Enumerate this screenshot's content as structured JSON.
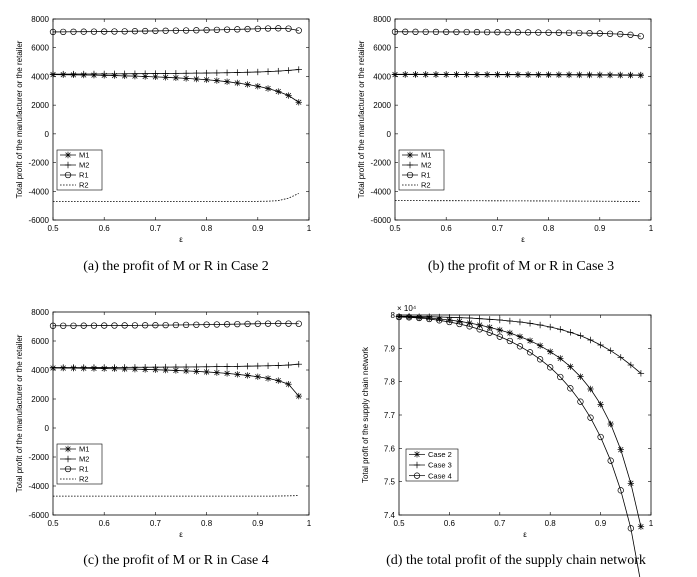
{
  "chart_data": [
    {
      "id": "a",
      "type": "line",
      "caption": "(a)  the profit of M or R in Case 2",
      "xlabel": "ε",
      "ylabel": "Total profit of the manufacturer or the retailer",
      "xlim": [
        0.5,
        1
      ],
      "ylim": [
        -6000,
        8000
      ],
      "xticks": [
        "0.5",
        "0.6",
        "0.7",
        "0.8",
        "0.9",
        "1"
      ],
      "yticks": [
        "-6000",
        "-4000",
        "-2000",
        "0",
        "2000",
        "4000",
        "6000",
        "8000"
      ],
      "exponent": "",
      "legend": [
        "M1",
        "M2",
        "R1",
        "R2"
      ],
      "x": [
        0.5,
        0.52,
        0.54,
        0.56,
        0.58,
        0.6,
        0.62,
        0.64,
        0.66,
        0.68,
        0.7,
        0.72,
        0.74,
        0.76,
        0.78,
        0.8,
        0.82,
        0.84,
        0.86,
        0.88,
        0.9,
        0.92,
        0.94,
        0.96,
        0.98
      ],
      "series": [
        {
          "name": "M1",
          "marker": "star",
          "values": [
            4130,
            4120,
            4110,
            4100,
            4090,
            4075,
            4060,
            4040,
            4020,
            3995,
            3970,
            3940,
            3905,
            3865,
            3820,
            3770,
            3710,
            3635,
            3545,
            3440,
            3315,
            3160,
            2950,
            2670,
            2200
          ]
        },
        {
          "name": "M2",
          "marker": "plus",
          "values": [
            4160,
            4162,
            4165,
            4168,
            4170,
            4175,
            4180,
            4185,
            4190,
            4195,
            4200,
            4206,
            4212,
            4220,
            4228,
            4236,
            4246,
            4258,
            4272,
            4290,
            4310,
            4335,
            4370,
            4420,
            4480
          ]
        },
        {
          "name": "R1",
          "marker": "circle",
          "values": [
            7100,
            7105,
            7110,
            7115,
            7120,
            7125,
            7130,
            7140,
            7150,
            7160,
            7170,
            7180,
            7190,
            7200,
            7215,
            7230,
            7245,
            7260,
            7280,
            7300,
            7320,
            7340,
            7350,
            7330,
            7200
          ]
        },
        {
          "name": "R2",
          "marker": "none",
          "dash": true,
          "values": [
            -4700,
            -4700,
            -4700,
            -4700,
            -4700,
            -4700,
            -4700,
            -4700,
            -4700,
            -4700,
            -4700,
            -4700,
            -4700,
            -4700,
            -4700,
            -4700,
            -4700,
            -4700,
            -4700,
            -4700,
            -4700,
            -4690,
            -4650,
            -4480,
            -4150
          ]
        }
      ]
    },
    {
      "id": "b",
      "type": "line",
      "caption": "(b)  the profit of M or R in Case 3",
      "xlabel": "ε",
      "ylabel": "Total profit of the manufacturer or the retailer",
      "xlim": [
        0.5,
        1
      ],
      "ylim": [
        -6000,
        8000
      ],
      "xticks": [
        "0.5",
        "0.6",
        "0.7",
        "0.8",
        "0.9",
        "1"
      ],
      "yticks": [
        "-6000",
        "-4000",
        "-2000",
        "0",
        "2000",
        "4000",
        "6000",
        "8000"
      ],
      "exponent": "",
      "legend": [
        "M1",
        "M2",
        "R1",
        "R2"
      ],
      "x": [
        0.5,
        0.52,
        0.54,
        0.56,
        0.58,
        0.6,
        0.62,
        0.64,
        0.66,
        0.68,
        0.7,
        0.72,
        0.74,
        0.76,
        0.78,
        0.8,
        0.82,
        0.84,
        0.86,
        0.88,
        0.9,
        0.92,
        0.94,
        0.96,
        0.98
      ],
      "series": [
        {
          "name": "M1",
          "marker": "star",
          "values": [
            4130,
            4129,
            4128,
            4127,
            4126,
            4125,
            4124,
            4123,
            4122,
            4121,
            4120,
            4118,
            4116,
            4114,
            4112,
            4110,
            4108,
            4106,
            4103,
            4100,
            4096,
            4092,
            4088,
            4083,
            4078
          ]
        },
        {
          "name": "M2",
          "marker": "plus",
          "values": [
            4150,
            4149,
            4148,
            4147,
            4146,
            4145,
            4144,
            4143,
            4142,
            4141,
            4140,
            4138,
            4136,
            4134,
            4132,
            4130,
            4128,
            4126,
            4123,
            4120,
            4116,
            4112,
            4108,
            4103,
            4098
          ]
        },
        {
          "name": "R1",
          "marker": "circle",
          "values": [
            7110,
            7108,
            7106,
            7104,
            7102,
            7100,
            7097,
            7094,
            7090,
            7086,
            7082,
            7077,
            7072,
            7066,
            7060,
            7053,
            7045,
            7036,
            7025,
            7012,
            6995,
            6975,
            6945,
            6900,
            6800
          ]
        },
        {
          "name": "R2",
          "marker": "none",
          "dash": true,
          "values": [
            -4650,
            -4651,
            -4652,
            -4653,
            -4654,
            -4655,
            -4656,
            -4658,
            -4660,
            -4662,
            -4664,
            -4666,
            -4668,
            -4670,
            -4672,
            -4674,
            -4677,
            -4680,
            -4683,
            -4687,
            -4691,
            -4695,
            -4700,
            -4706,
            -4712
          ]
        }
      ]
    },
    {
      "id": "c",
      "type": "line",
      "caption": "(c)  the profit of M or R in Case 4",
      "xlabel": "ε",
      "ylabel": "Total profit of the manufacturer or the retailer",
      "xlim": [
        0.5,
        1
      ],
      "ylim": [
        -6000,
        8000
      ],
      "xticks": [
        "0.5",
        "0.6",
        "0.7",
        "0.8",
        "0.9",
        "1"
      ],
      "yticks": [
        "-6000",
        "-4000",
        "-2000",
        "0",
        "2000",
        "4000",
        "6000",
        "8000"
      ],
      "exponent": "",
      "legend": [
        "M1",
        "M2",
        "R1",
        "R2"
      ],
      "x": [
        0.5,
        0.52,
        0.54,
        0.56,
        0.58,
        0.6,
        0.62,
        0.64,
        0.66,
        0.68,
        0.7,
        0.72,
        0.74,
        0.76,
        0.78,
        0.8,
        0.82,
        0.84,
        0.86,
        0.88,
        0.9,
        0.92,
        0.94,
        0.96,
        0.98
      ],
      "series": [
        {
          "name": "M1",
          "marker": "star",
          "values": [
            4140,
            4135,
            4128,
            4120,
            4110,
            4100,
            4088,
            4074,
            4058,
            4040,
            4020,
            3996,
            3970,
            3940,
            3905,
            3865,
            3818,
            3765,
            3700,
            3625,
            3535,
            3420,
            3270,
            3020,
            2200
          ]
        },
        {
          "name": "M2",
          "marker": "plus",
          "values": [
            4170,
            4171,
            4172,
            4174,
            4176,
            4178,
            4180,
            4183,
            4186,
            4190,
            4194,
            4198,
            4203,
            4209,
            4215,
            4222,
            4230,
            4240,
            4250,
            4262,
            4276,
            4292,
            4312,
            4340,
            4400
          ]
        },
        {
          "name": "R1",
          "marker": "circle",
          "values": [
            7050,
            7052,
            7054,
            7057,
            7060,
            7064,
            7068,
            7073,
            7078,
            7084,
            7090,
            7097,
            7104,
            7112,
            7120,
            7130,
            7140,
            7152,
            7165,
            7178,
            7190,
            7200,
            7205,
            7200,
            7190
          ]
        },
        {
          "name": "R2",
          "marker": "none",
          "dash": true,
          "values": [
            -4700,
            -4700,
            -4700,
            -4700,
            -4700,
            -4700,
            -4700,
            -4700,
            -4700,
            -4700,
            -4700,
            -4700,
            -4700,
            -4700,
            -4700,
            -4700,
            -4700,
            -4700,
            -4700,
            -4700,
            -4700,
            -4700,
            -4690,
            -4680,
            -4660
          ]
        }
      ]
    },
    {
      "id": "d",
      "type": "line",
      "caption": "(d)  the total profit of the supply chain network",
      "xlabel": "ε",
      "ylabel": "Total profit of the supply chain network",
      "xlim": [
        0.5,
        1
      ],
      "ylim": [
        7.4,
        8
      ],
      "xticks": [
        "0.5",
        "0.6",
        "0.7",
        "0.8",
        "0.9",
        "1"
      ],
      "yticks": [
        "7.4",
        "7.5",
        "7.6",
        "7.7",
        "7.8",
        "7.9",
        "8"
      ],
      "exponent": "× 10⁴",
      "legend": [
        "Case 2",
        "Case 3",
        "Case 4"
      ],
      "x": [
        0.5,
        0.52,
        0.54,
        0.56,
        0.58,
        0.6,
        0.62,
        0.64,
        0.66,
        0.68,
        0.7,
        0.72,
        0.74,
        0.76,
        0.78,
        0.8,
        0.82,
        0.84,
        0.86,
        0.88,
        0.9,
        0.92,
        0.94,
        0.96,
        0.98
      ],
      "series": [
        {
          "name": "Case 2",
          "marker": "star",
          "values": [
            7.995,
            7.994,
            7.993,
            7.991,
            7.988,
            7.985,
            7.981,
            7.976,
            7.97,
            7.963,
            7.955,
            7.946,
            7.935,
            7.923,
            7.908,
            7.89,
            7.87,
            7.845,
            7.815,
            7.778,
            7.732,
            7.673,
            7.596,
            7.495,
            7.365
          ]
        },
        {
          "name": "Case 3",
          "marker": "plus",
          "values": [
            7.996,
            7.996,
            7.995,
            7.995,
            7.994,
            7.993,
            7.992,
            7.991,
            7.989,
            7.987,
            7.985,
            7.982,
            7.979,
            7.975,
            7.97,
            7.964,
            7.957,
            7.948,
            7.938,
            7.925,
            7.91,
            7.893,
            7.873,
            7.85,
            7.825
          ]
        },
        {
          "name": "Case 4",
          "marker": "circle",
          "values": [
            7.994,
            7.993,
            7.991,
            7.988,
            7.984,
            7.979,
            7.973,
            7.966,
            7.957,
            7.947,
            7.935,
            7.922,
            7.906,
            7.888,
            7.867,
            7.843,
            7.814,
            7.78,
            7.74,
            7.692,
            7.634,
            7.563,
            7.474,
            7.36,
            7.195
          ]
        }
      ]
    }
  ]
}
